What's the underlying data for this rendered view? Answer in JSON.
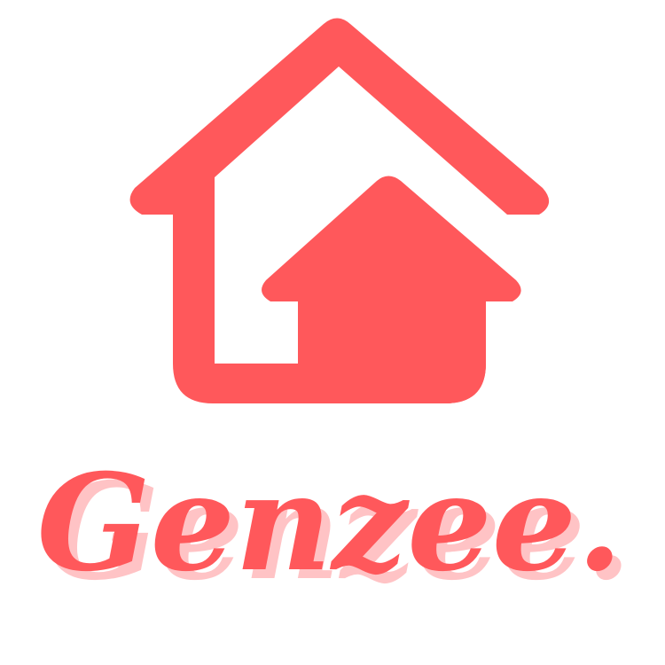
{
  "brand": {
    "name": "Genzee.",
    "primary_color": "#ff585b",
    "shadow_color": "#ffc3c5",
    "background_color": "#ffffff"
  },
  "icons": {
    "house": "house-icon"
  }
}
